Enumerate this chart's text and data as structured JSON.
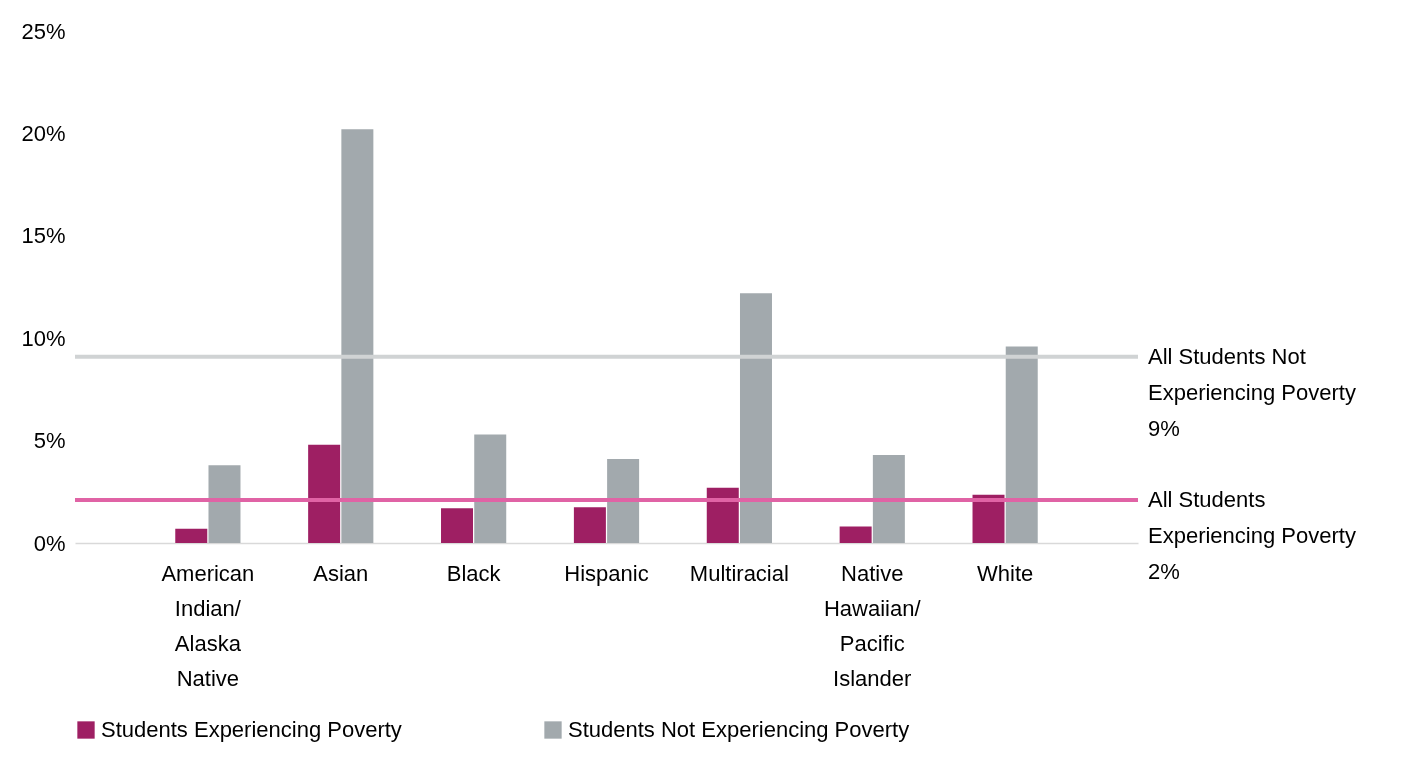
{
  "chart_data": {
    "type": "bar",
    "categories": [
      "American Indian/ Alaska Native",
      "Asian",
      "Black",
      "Hispanic",
      "Multiracial",
      "Native Hawaiian/ Pacific Islander",
      "White"
    ],
    "series": [
      {
        "name": "Students Experiencing Poverty",
        "color": "#9e1f63",
        "values": [
          0.7,
          4.8,
          1.7,
          1.75,
          2.7,
          0.8,
          2.35
        ]
      },
      {
        "name": "Students Not Experiencing Poverty",
        "color": "#a2a9ad",
        "values": [
          3.8,
          20.2,
          5.3,
          4.1,
          12.2,
          4.3,
          9.6
        ]
      }
    ],
    "ylim": [
      0,
      25
    ],
    "yticks": [
      {
        "value": 0,
        "label": "0%"
      },
      {
        "value": 5,
        "label": "5%"
      },
      {
        "value": 10,
        "label": "10%"
      },
      {
        "value": 15,
        "label": "15%"
      },
      {
        "value": 20,
        "label": "20%"
      },
      {
        "value": 25,
        "label": "25%"
      }
    ],
    "ref_lines": [
      {
        "axis": "y",
        "value": 9.1,
        "label": "All Students Not Experiencing Poverty 9%",
        "color": "#d0d3d4"
      },
      {
        "axis": "y",
        "value": 2.1,
        "label": "All Students Experiencing Poverty 2%",
        "color": "#e063a5"
      }
    ],
    "grid": false,
    "legend": "bottom"
  }
}
